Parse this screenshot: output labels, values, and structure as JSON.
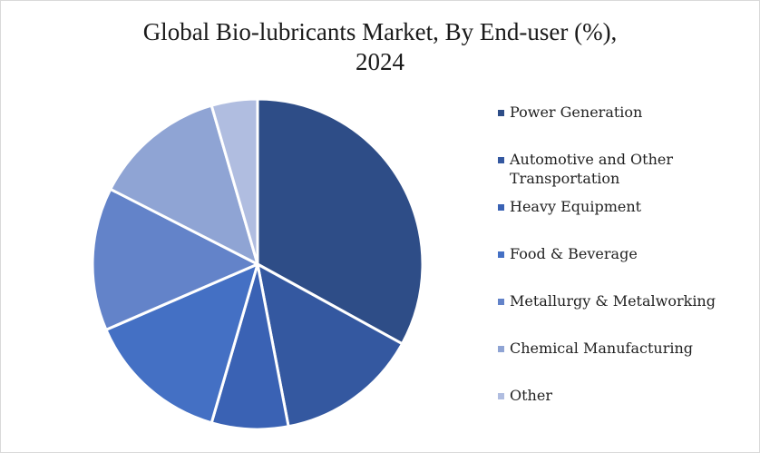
{
  "chart_data": {
    "type": "pie",
    "title": "Global Bio-lubricants Market, By End-user (%), 2024",
    "title_lines": [
      "Global Bio-lubricants Market, By End-user (%),",
      "2024"
    ],
    "categories": [
      "Power Generation",
      "Automotive and Other Transportation",
      "Heavy Equipment",
      "Food & Beverage",
      "Metallurgy & Metalworking",
      "Chemical Manufacturing",
      "Other"
    ],
    "values": [
      33,
      14,
      7.5,
      14,
      14,
      13,
      4.5
    ],
    "colors": [
      "#2e4d87",
      "#3458a0",
      "#3a62b4",
      "#4470c4",
      "#6383c9",
      "#8fa4d4",
      "#b0bde0"
    ],
    "legend_position": "right",
    "start_angle_deg": 0,
    "direction": "clockwise"
  }
}
